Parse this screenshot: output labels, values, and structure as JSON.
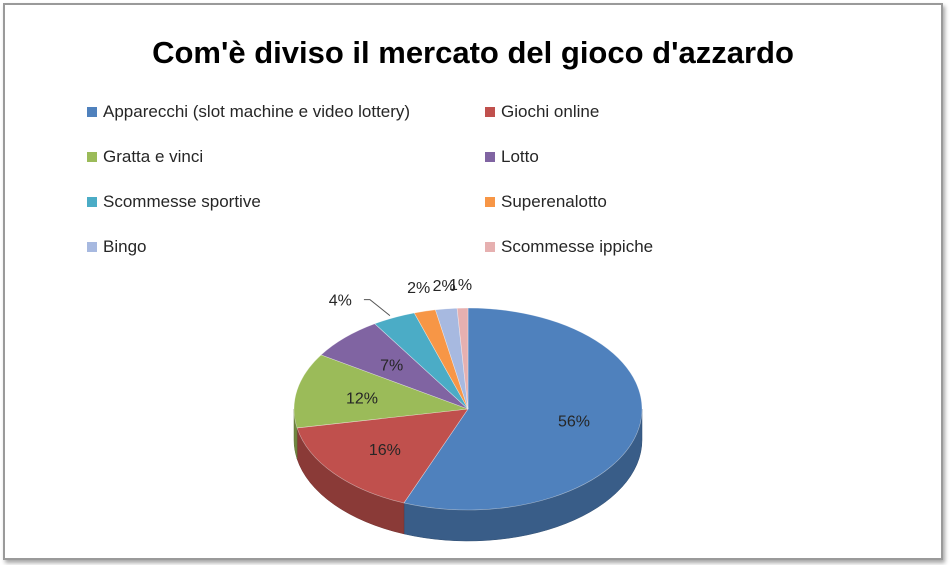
{
  "chart_data": {
    "type": "pie",
    "title": "Com'è diviso il mercato del gioco d'azzardo",
    "slices": [
      {
        "label": "Apparecchi (slot machine e video lottery)",
        "value": 56,
        "data_label": "56%",
        "color": "#4f81bd"
      },
      {
        "label": "Giochi online",
        "value": 16,
        "data_label": "16%",
        "color": "#c0504d"
      },
      {
        "label": "Gratta e vinci",
        "value": 12,
        "data_label": "12%",
        "color": "#9bbb59"
      },
      {
        "label": "Lotto",
        "value": 7,
        "data_label": "7%",
        "color": "#8064a2"
      },
      {
        "label": "Scommesse sportive",
        "value": 4,
        "data_label": "4%",
        "color": "#4bacc6"
      },
      {
        "label": "Superenalotto",
        "value": 2,
        "data_label": "2%",
        "color": "#f79646"
      },
      {
        "label": "Bingo",
        "value": 2,
        "data_label": "2%",
        "color": "#a7b9e0"
      },
      {
        "label": "Scommesse ippiche",
        "value": 1,
        "data_label": "1%",
        "color": "#e6b0b0"
      }
    ],
    "legend_position": "top",
    "style": "3d"
  }
}
